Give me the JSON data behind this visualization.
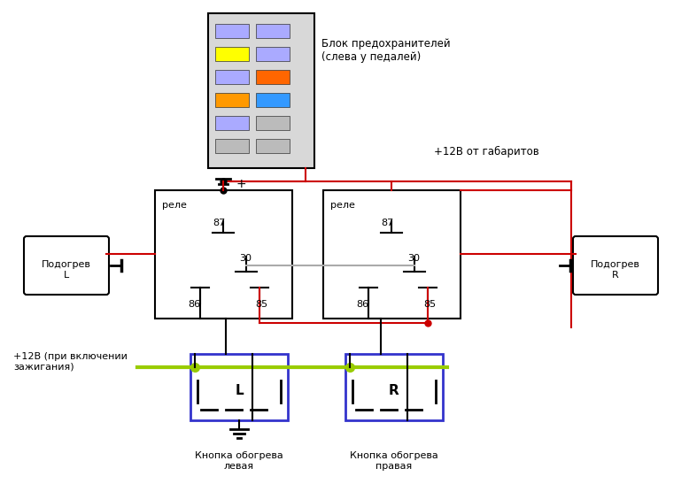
{
  "bg_color": "#ffffff",
  "fuse_box_label": "Блок предохранителей\n(слева у педалей)",
  "plus12v_label": "+12В от габаритов",
  "plus12v_ign_label": "+12В (при включении\nзажигания)",
  "relay_label": "реле",
  "left_seat_label": "Подогрев\nL",
  "right_seat_label": "Подогрев\nR",
  "btn_left_label": "Кнопка обогрева\nлевая",
  "btn_right_label": "Кнопка обогрева\nправая",
  "btn_left_letter": "L",
  "btn_right_letter": "R",
  "red": "#cc0000",
  "black": "#000000",
  "green": "#99cc00",
  "blue": "#3333cc",
  "gray": "#aaaaaa",
  "fuse_colors_col1": [
    "#aaaaff",
    "#ffff00",
    "#aaaaff",
    "#ff9900",
    "#aaaaff",
    "#bbbbbb"
  ],
  "fuse_colors_col2": [
    "#aaaaff",
    "#aaaaff",
    "#ff6600",
    "#3399ff",
    "#bbbbbb",
    "#bbbbbb"
  ]
}
